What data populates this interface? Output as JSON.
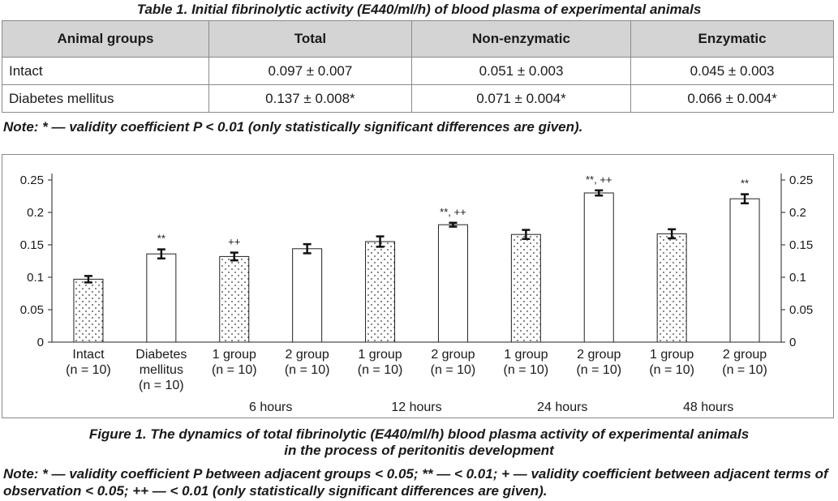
{
  "table": {
    "caption": "Table 1. Initial fibrinolytic activity (E440/ml/h) of blood plasma of experimental animals",
    "headers": [
      "Animal groups",
      "Total",
      "Non-enzymatic",
      "Enzymatic"
    ],
    "rows": [
      [
        "Intact",
        "0.097 ± 0.007",
        "0.051 ± 0.003",
        "0.045 ± 0.003"
      ],
      [
        "Diabetes mellitus",
        "0.137 ± 0.008*",
        "0.071 ± 0.004*",
        "0.066 ± 0.004*"
      ]
    ],
    "note": "Note: * — validity coefficient P < 0.01 (only statistically significant differences are given)."
  },
  "figure": {
    "caption_line1": "Figure 1. The dynamics of total fibrinolytic (E440/ml/h) blood plasma activity of experimental animals",
    "caption_line2": "in the process of peritonitis development",
    "note": "Note: * — validity coefficient P between adjacent groups < 0.05; ** — < 0.01; + — validity coefficient between adjacent terms of observation < 0.05; ++ — < 0.01 (only statistically significant differences are given)."
  },
  "chart_data": {
    "type": "bar",
    "ylim": [
      0,
      0.25
    ],
    "yticks": [
      "0",
      "0.05",
      "0.1",
      "0.15",
      "0.2",
      "0.25"
    ],
    "ytick_values": [
      0,
      0.05,
      0.1,
      0.15,
      0.2,
      0.25
    ],
    "grid": false,
    "axis_right": true,
    "categories": [
      {
        "lines": [
          "Intact",
          "(n = 10)"
        ]
      },
      {
        "lines": [
          "Diabetes",
          "mellitus",
          "(n = 10)"
        ]
      },
      {
        "lines": [
          "1 group",
          "(n = 10)"
        ]
      },
      {
        "lines": [
          "2 group",
          "(n = 10)"
        ]
      },
      {
        "lines": [
          "1 group",
          "(n = 10)"
        ]
      },
      {
        "lines": [
          "2 group",
          "(n = 10)"
        ]
      },
      {
        "lines": [
          "1 group",
          "(n = 10)"
        ]
      },
      {
        "lines": [
          "2 group",
          "(n = 10)"
        ]
      },
      {
        "lines": [
          "1 group",
          "(n = 10)"
        ]
      },
      {
        "lines": [
          "2 group",
          "(n = 10)"
        ]
      }
    ],
    "values": [
      0.097,
      0.136,
      0.132,
      0.144,
      0.155,
      0.181,
      0.166,
      0.23,
      0.167,
      0.221
    ],
    "errors": [
      0.005,
      0.007,
      0.006,
      0.007,
      0.008,
      0.003,
      0.007,
      0.004,
      0.007,
      0.007
    ],
    "fills": [
      "dotted",
      "white",
      "dotted",
      "white",
      "dotted",
      "white",
      "dotted",
      "white",
      "dotted",
      "white"
    ],
    "significance": [
      "",
      "**",
      "++",
      "",
      "",
      "**, ++",
      "",
      "**, ++",
      "",
      "**"
    ],
    "periods": [
      "6 hours",
      "12 hours",
      "24 hours",
      "48 hours"
    ]
  }
}
